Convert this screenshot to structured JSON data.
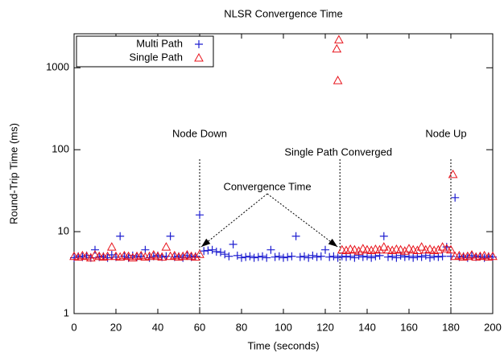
{
  "chart_data": {
    "type": "scatter",
    "title": "NLSR Convergence Time",
    "x_label": "Time (seconds)",
    "y_label": "Round-Trip Time (ms)",
    "xlim": [
      0,
      200
    ],
    "xticks": [
      0,
      20,
      40,
      60,
      80,
      100,
      120,
      140,
      160,
      180,
      200
    ],
    "ylim": [
      1,
      2600
    ],
    "yticks": [
      1,
      10,
      100,
      1000
    ],
    "log_y": true,
    "legend": "top-left",
    "vlines": [
      60,
      127,
      180
    ],
    "annotations": [
      "Node Down",
      "Single Path Converged",
      "Node Up",
      "Convergence Time"
    ],
    "series": [
      {
        "name": "Multi Path",
        "color": "#1f1fd0",
        "marker": "plus",
        "x": [
          0,
          2,
          4,
          6,
          8,
          10,
          12,
          14,
          16,
          18,
          20,
          22,
          24,
          26,
          28,
          30,
          32,
          34,
          36,
          38,
          40,
          42,
          44,
          46,
          48,
          50,
          52,
          54,
          56,
          58,
          60,
          62,
          64,
          66,
          68,
          70,
          72,
          74,
          76,
          78,
          80,
          82,
          84,
          86,
          88,
          90,
          92,
          94,
          96,
          98,
          100,
          102,
          104,
          106,
          108,
          110,
          112,
          114,
          116,
          118,
          120,
          122,
          124,
          126,
          128,
          130,
          132,
          134,
          136,
          138,
          140,
          142,
          144,
          146,
          148,
          150,
          152,
          154,
          156,
          158,
          160,
          162,
          164,
          166,
          168,
          170,
          172,
          174,
          176,
          178,
          180,
          182,
          184,
          186,
          188,
          190,
          192,
          194,
          196,
          198,
          200
        ],
        "values": [
          4.8,
          5,
          4.9,
          5.1,
          4.8,
          6,
          4.9,
          5,
          4.8,
          5.2,
          4.9,
          8.8,
          5,
          4.8,
          5.1,
          4.9,
          5,
          6,
          4.8,
          5,
          5.1,
          4.9,
          5,
          8.8,
          4.9,
          5,
          4.8,
          5.1,
          4.9,
          5,
          16,
          5.8,
          5.9,
          6,
          5.7,
          5.6,
          5.3,
          5,
          7,
          5.1,
          4.8,
          4.9,
          5,
          4.8,
          4.9,
          5,
          4.8,
          6,
          4.9,
          5,
          4.8,
          4.9,
          5,
          8.8,
          4.9,
          5,
          4.8,
          5.1,
          4.9,
          5,
          6,
          4.9,
          5,
          4.8,
          5,
          4.9,
          5,
          4.8,
          5.1,
          4.9,
          5,
          4.8,
          5,
          5.1,
          8.8,
          4.9,
          5,
          4.8,
          5.1,
          4.9,
          5,
          4.8,
          5,
          4.9,
          5.1,
          4.8,
          5,
          4.9,
          5,
          6.5,
          5,
          26,
          4.9,
          5,
          4.8,
          5.1,
          4.9,
          5,
          4.8,
          5,
          4.9
        ]
      },
      {
        "name": "Single Path",
        "color": "#e8141c",
        "marker": "triangle",
        "x": [
          0,
          2,
          4,
          6,
          8,
          10,
          12,
          14,
          16,
          18,
          20,
          22,
          24,
          26,
          28,
          30,
          32,
          34,
          36,
          38,
          40,
          42,
          44,
          46,
          48,
          50,
          52,
          54,
          56,
          58,
          60,
          126,
          125.5,
          126.5,
          128,
          130,
          132,
          134,
          136,
          138,
          140,
          142,
          144,
          146,
          148,
          150,
          152,
          154,
          156,
          158,
          160,
          162,
          164,
          166,
          168,
          170,
          172,
          174,
          176,
          178,
          180,
          181,
          182,
          184,
          186,
          188,
          190,
          192,
          194,
          196,
          198,
          200
        ],
        "values": [
          5,
          4.9,
          5.1,
          5,
          4.8,
          5.2,
          5,
          4.9,
          5,
          6.5,
          5,
          4.9,
          5.1,
          5,
          4.8,
          5,
          5.1,
          4.9,
          5,
          5.2,
          5,
          4.9,
          6.5,
          5,
          5.1,
          4.9,
          5,
          5.2,
          5,
          4.9,
          5.3,
          700,
          1700,
          2200,
          6,
          5.9,
          6.1,
          6,
          5.8,
          6.2,
          6,
          5.9,
          6.1,
          6,
          6.5,
          6,
          5.9,
          6.1,
          6,
          5.8,
          6.2,
          6,
          5.9,
          6.5,
          6,
          6.1,
          5.9,
          6,
          6.5,
          6.2,
          6,
          50,
          5,
          5.1,
          4.9,
          5,
          5.2,
          4.9,
          5,
          5.1,
          4.9,
          5
        ]
      }
    ]
  }
}
